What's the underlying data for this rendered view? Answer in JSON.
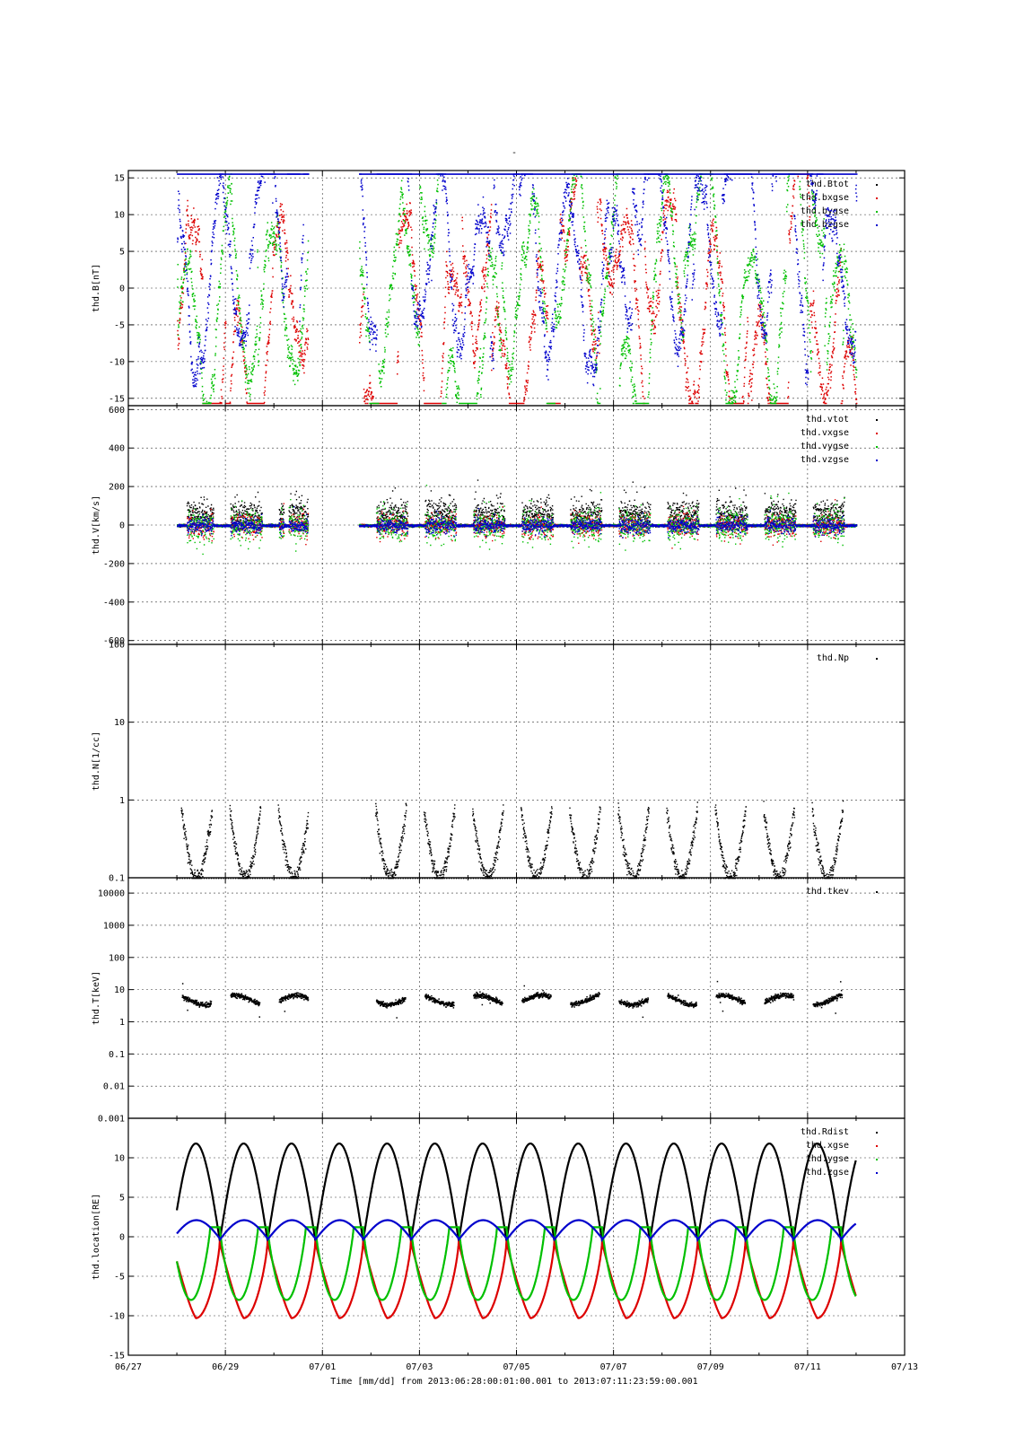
{
  "title": "-",
  "xlabel": "Time [mm/dd]  from 2013:06:28:00:01:00.001  to  2013:07:11:23:59:00.001",
  "x_ticks": [
    "06/27",
    "06/29",
    "07/01",
    "07/03",
    "07/05",
    "07/07",
    "07/09",
    "07/11",
    "07/13"
  ],
  "colors": {
    "black": "#000000",
    "red": "#dd0000",
    "green": "#00c000",
    "blue": "#0000cc",
    "grid": "#333333"
  },
  "chart_data": [
    {
      "type": "scatter",
      "ylabel": "thd.B[nT]",
      "ylim": [
        -16,
        16
      ],
      "yscale": "linear",
      "yticks": [
        -15,
        -10,
        -5,
        0,
        5,
        10,
        15
      ],
      "ytick_labels": [
        "-15",
        "-10",
        "-5",
        "0",
        "5",
        "10",
        "15"
      ],
      "legend": {
        "placement": "top-right",
        "entries": [
          {
            "name": "thd.Btot",
            "color": "black"
          },
          {
            "name": "thd.bxgse",
            "color": "red"
          },
          {
            "name": "thd.bygse",
            "color": "green"
          },
          {
            "name": "thd.bzgse",
            "color": "blue"
          }
        ]
      },
      "data_segments_days": [
        [
          1.0,
          3.7
        ],
        [
          4.75,
          15.0
        ]
      ]
    },
    {
      "type": "scatter",
      "ylabel": "thd.V[km/s]",
      "ylim": [
        -620,
        620
      ],
      "yscale": "linear",
      "yticks": [
        -600,
        -400,
        -200,
        0,
        200,
        400,
        600
      ],
      "ytick_labels": [
        "-600",
        "-400",
        "-200",
        "0",
        "200",
        "400",
        "600"
      ],
      "legend": {
        "placement": "top-right",
        "entries": [
          {
            "name": "thd.vtot",
            "color": "black"
          },
          {
            "name": "thd.vxgse",
            "color": "red"
          },
          {
            "name": "thd.vygse",
            "color": "green"
          },
          {
            "name": "thd.vzgse",
            "color": "blue"
          }
        ]
      }
    },
    {
      "type": "scatter",
      "ylabel": "thd.N[1/cc]",
      "ylim": [
        0.1,
        100
      ],
      "yscale": "log",
      "yticks": [
        0.1,
        1,
        10,
        100
      ],
      "ytick_labels": [
        "0.1",
        "1",
        "10",
        "100"
      ],
      "legend": {
        "placement": "top-right",
        "entries": [
          {
            "name": "thd.Np",
            "color": "black"
          }
        ]
      }
    },
    {
      "type": "scatter",
      "ylabel": "thd.T[keV]",
      "ylim": [
        0.001,
        30000
      ],
      "yscale": "log",
      "yticks": [
        0.001,
        0.01,
        0.1,
        1,
        10,
        100,
        1000,
        10000
      ],
      "ytick_labels": [
        "0.001",
        "0.01",
        "0.1",
        "1",
        "10",
        "100",
        "1000",
        "10000"
      ],
      "legend": {
        "placement": "top-right",
        "entries": [
          {
            "name": "thd.tkev",
            "color": "black"
          }
        ]
      }
    },
    {
      "type": "line",
      "ylabel": "thd.location[RE]",
      "ylim": [
        -15,
        15
      ],
      "yscale": "linear",
      "yticks": [
        -15,
        -10,
        -5,
        0,
        5,
        10
      ],
      "ytick_labels": [
        "-15",
        "-10",
        "-5",
        "0",
        "5",
        "10"
      ],
      "legend": {
        "placement": "top-right",
        "entries": [
          {
            "name": "thd.Rdist",
            "color": "black"
          },
          {
            "name": "thd.xgse",
            "color": "red"
          },
          {
            "name": "thd.ygse",
            "color": "green"
          },
          {
            "name": "thd.zgse",
            "color": "blue"
          }
        ]
      },
      "orbit_period_days": 0.985,
      "Rdist_range": [
        -0.5,
        11.8
      ],
      "xgse_range": [
        -10.3,
        -0.5
      ],
      "ygse_range": [
        -8.0,
        1.2
      ],
      "zgse_range": [
        -0.5,
        2.1
      ]
    }
  ]
}
